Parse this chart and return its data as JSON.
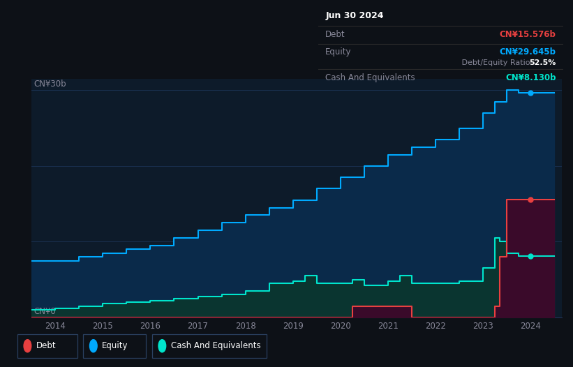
{
  "bg_color": "#0d1117",
  "plot_bg_color": "#0d1b2a",
  "grid_color": "#1e3a5f",
  "title_box": {
    "date": "Jun 30 2024",
    "debt_label": "Debt",
    "debt_value": "CN¥15.576b",
    "equity_label": "Equity",
    "equity_value": "CN¥29.645b",
    "ratio_pct": "52.5%",
    "ratio_rest": " Debt/Equity Ratio",
    "cash_label": "Cash And Equivalents",
    "cash_value": "CN¥8.130b"
  },
  "ylabel_top": "CN¥30b",
  "ylabel_bottom": "CN¥0",
  "x_ticks": [
    2014,
    2015,
    2016,
    2017,
    2018,
    2019,
    2020,
    2021,
    2022,
    2023,
    2024
  ],
  "equity_color": "#00aaff",
  "debt_color": "#e84040",
  "cash_color": "#00e5cc",
  "equity_fill_color": "#0a2a4a",
  "debt_fill_color": "#3a0a2a",
  "cash_fill_color": "#0a3530",
  "equity_data": {
    "dates": [
      2013.5,
      2014.0,
      2014.5,
      2015.0,
      2015.5,
      2016.0,
      2016.5,
      2017.0,
      2017.5,
      2018.0,
      2018.5,
      2019.0,
      2019.5,
      2020.0,
      2020.5,
      2021.0,
      2021.5,
      2022.0,
      2022.5,
      2023.0,
      2023.25,
      2023.5,
      2023.75,
      2024.0,
      2024.5
    ],
    "values": [
      7.5,
      7.5,
      8.0,
      8.5,
      9.0,
      9.5,
      10.5,
      11.5,
      12.5,
      13.5,
      14.5,
      15.5,
      17.0,
      18.5,
      20.0,
      21.5,
      22.5,
      23.5,
      25.0,
      27.0,
      28.5,
      30.0,
      29.645,
      29.645,
      29.645
    ]
  },
  "debt_data": {
    "dates": [
      2013.5,
      2019.9,
      2019.95,
      2020.0,
      2020.25,
      2020.5,
      2021.0,
      2021.5,
      2022.5,
      2023.0,
      2023.25,
      2023.35,
      2023.5,
      2023.75,
      2024.0,
      2024.5
    ],
    "values": [
      0.0,
      0.0,
      0.0,
      0.0,
      1.5,
      1.5,
      1.5,
      0.0,
      0.0,
      0.0,
      1.5,
      8.0,
      15.576,
      15.576,
      15.576,
      15.576
    ]
  },
  "cash_data": {
    "dates": [
      2013.5,
      2014.0,
      2014.5,
      2015.0,
      2015.5,
      2016.0,
      2016.5,
      2017.0,
      2017.5,
      2018.0,
      2018.5,
      2019.0,
      2019.25,
      2019.5,
      2020.0,
      2020.25,
      2020.5,
      2021.0,
      2021.25,
      2021.5,
      2022.0,
      2022.5,
      2023.0,
      2023.25,
      2023.35,
      2023.5,
      2023.75,
      2024.0,
      2024.5
    ],
    "values": [
      1.0,
      1.2,
      1.5,
      1.8,
      2.0,
      2.2,
      2.5,
      2.8,
      3.0,
      3.5,
      4.5,
      4.8,
      5.5,
      4.5,
      4.5,
      5.0,
      4.2,
      4.8,
      5.5,
      4.5,
      4.5,
      4.8,
      6.5,
      10.5,
      10.0,
      8.5,
      8.13,
      8.13,
      8.13
    ]
  },
  "legend_items": [
    {
      "label": "Debt",
      "color": "#e84040"
    },
    {
      "label": "Equity",
      "color": "#00aaff"
    },
    {
      "label": "Cash And Equivalents",
      "color": "#00e5cc"
    }
  ],
  "ylim_max": 31.5,
  "xlim_min": 2013.5,
  "xlim_max": 2024.65
}
